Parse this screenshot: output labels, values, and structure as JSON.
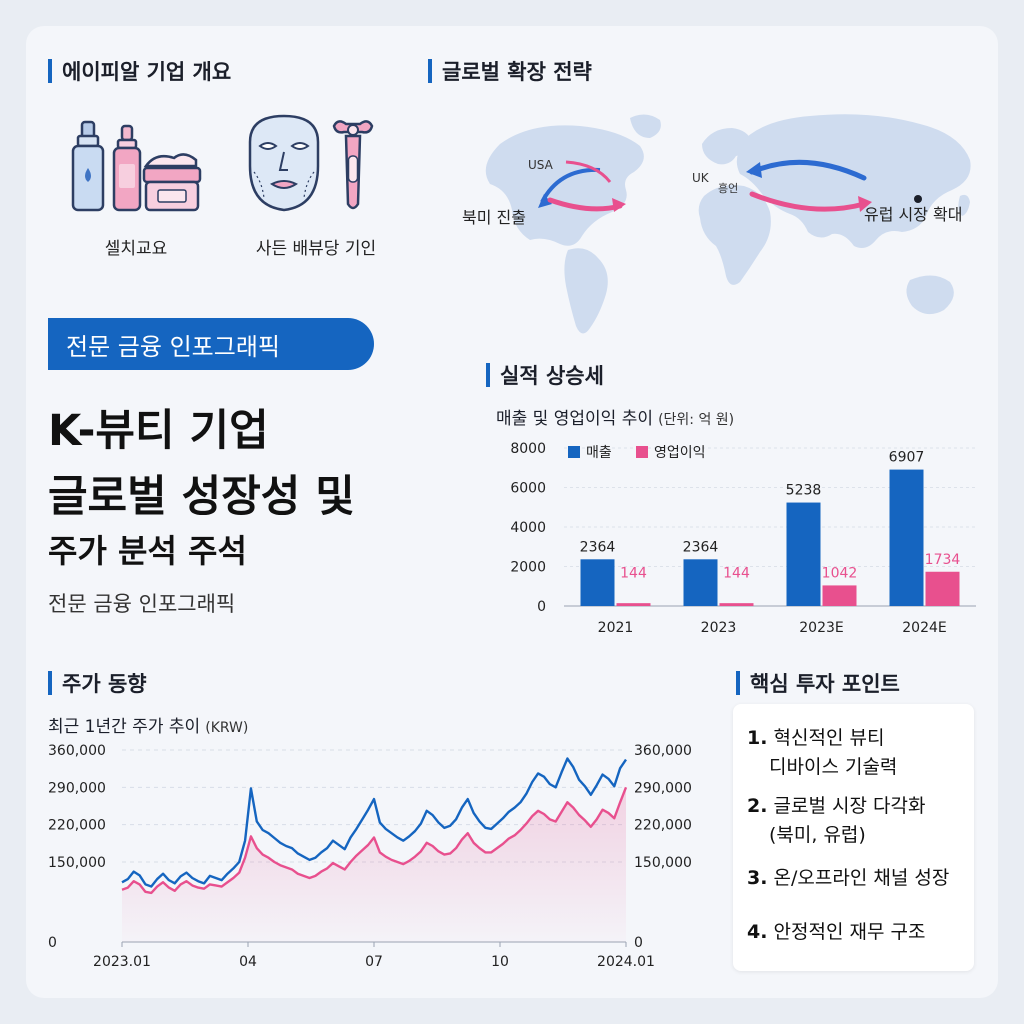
{
  "overview": {
    "title": "에이피알 기업 개요",
    "left_caption": "셀치교요",
    "right_caption": "사든 배뷰당 기인",
    "icons": [
      "serum-bottles-icon",
      "cream-jar-icon",
      "led-face-mask-icon",
      "beauty-device-icon"
    ]
  },
  "hero": {
    "pill": "전문 금융 인포그래픽",
    "line1": "K-뷰티 기업",
    "line2": "글로벌 성장성 및",
    "line3": "주가 분석 주석",
    "subtitle": "전문 금융 인포그래픽"
  },
  "global": {
    "title": "글로벌 확장 전략",
    "label_usa": "USA",
    "label_na": "북미 진출",
    "label_uk": "UK",
    "label_uk2": "흥언",
    "label_eu": "유럽 시장 확대"
  },
  "earnings": {
    "section_title": "실적 상승세",
    "chart_title": "매출 및 영업이익 추이",
    "unit": "(단위: 억 원)"
  },
  "stock": {
    "section_title": "주가 동향",
    "chart_title": "최근 1년간 주가 추이",
    "unit": "(KRW)"
  },
  "points": {
    "title": "핵심 투자 포인트",
    "items": [
      {
        "num": "1.",
        "line1": "혁신적인 뷰티",
        "line2": "디바이스 기술력"
      },
      {
        "num": "2.",
        "line1": "글로벌 시장 다각화",
        "line2": "(북미, 유럽)"
      },
      {
        "num": "3.",
        "line1": "온/오프라인 채널 성장",
        "line2": ""
      },
      {
        "num": "4.",
        "line1": "안정적인 재무 구조",
        "line2": ""
      }
    ]
  },
  "colors": {
    "accent_blue": "#1565c0",
    "pink": "#e8508e",
    "map": "#cfdcef"
  },
  "chart_data": [
    {
      "type": "bar",
      "categories": [
        "2021",
        "2023",
        "2023E",
        "2024E"
      ],
      "series": [
        {
          "name": "매출",
          "values": [
            2364,
            2364,
            5238,
            6907
          ],
          "labels": [
            "2364",
            "2364",
            "5238",
            "6907"
          ]
        },
        {
          "name": "영업이익",
          "values": [
            144,
            144,
            1042,
            1734
          ],
          "labels": [
            "144",
            "144",
            "1042",
            "1734"
          ]
        }
      ],
      "ylim": [
        0,
        8000
      ],
      "yticks": [
        "0",
        "2000",
        "4000",
        "6000",
        "8000"
      ],
      "legend": "top-left",
      "grid": true
    },
    {
      "type": "line",
      "xticks": [
        "2023.01",
        "04",
        "07",
        "10",
        "2024.01"
      ],
      "yticks": [
        "0",
        "150,000",
        "220,000",
        "290,000",
        "360,000"
      ],
      "ylim": [
        0,
        360000
      ],
      "grid": true,
      "series": [
        {
          "values": [
            112000,
            118000,
            132000,
            125000,
            108000,
            104000,
            118000,
            128000,
            116000,
            110000,
            123000,
            130000,
            120000,
            114000,
            110000,
            124000,
            120000,
            116000,
            128000,
            138000,
            150000,
            190000,
            288000,
            226000,
            210000,
            204000,
            195000,
            186000,
            180000,
            176000,
            166000,
            160000,
            154000,
            158000,
            168000,
            176000,
            190000,
            182000,
            174000,
            196000,
            212000,
            230000,
            248000,
            268000,
            224000,
            212000,
            204000,
            196000,
            190000,
            198000,
            208000,
            222000,
            246000,
            238000,
            224000,
            214000,
            218000,
            230000,
            252000,
            268000,
            242000,
            226000,
            214000,
            212000,
            222000,
            232000,
            244000,
            252000,
            262000,
            278000,
            300000,
            316000,
            310000,
            296000,
            290000,
            318000,
            344000,
            328000,
            304000,
            292000,
            276000,
            294000,
            314000,
            306000,
            292000,
            326000,
            342000
          ]
        },
        {
          "values": [
            98000,
            102000,
            114000,
            108000,
            94000,
            92000,
            104000,
            112000,
            102000,
            96000,
            108000,
            114000,
            106000,
            102000,
            100000,
            108000,
            106000,
            104000,
            112000,
            120000,
            130000,
            158000,
            198000,
            176000,
            164000,
            158000,
            150000,
            144000,
            140000,
            136000,
            128000,
            124000,
            120000,
            124000,
            132000,
            138000,
            148000,
            142000,
            136000,
            150000,
            162000,
            172000,
            182000,
            196000,
            168000,
            160000,
            154000,
            150000,
            146000,
            152000,
            160000,
            170000,
            186000,
            180000,
            170000,
            164000,
            166000,
            176000,
            192000,
            204000,
            186000,
            176000,
            168000,
            168000,
            176000,
            184000,
            194000,
            200000,
            210000,
            222000,
            236000,
            246000,
            240000,
            230000,
            226000,
            244000,
            262000,
            252000,
            238000,
            228000,
            216000,
            230000,
            248000,
            242000,
            232000,
            262000,
            290000
          ]
        }
      ]
    }
  ]
}
